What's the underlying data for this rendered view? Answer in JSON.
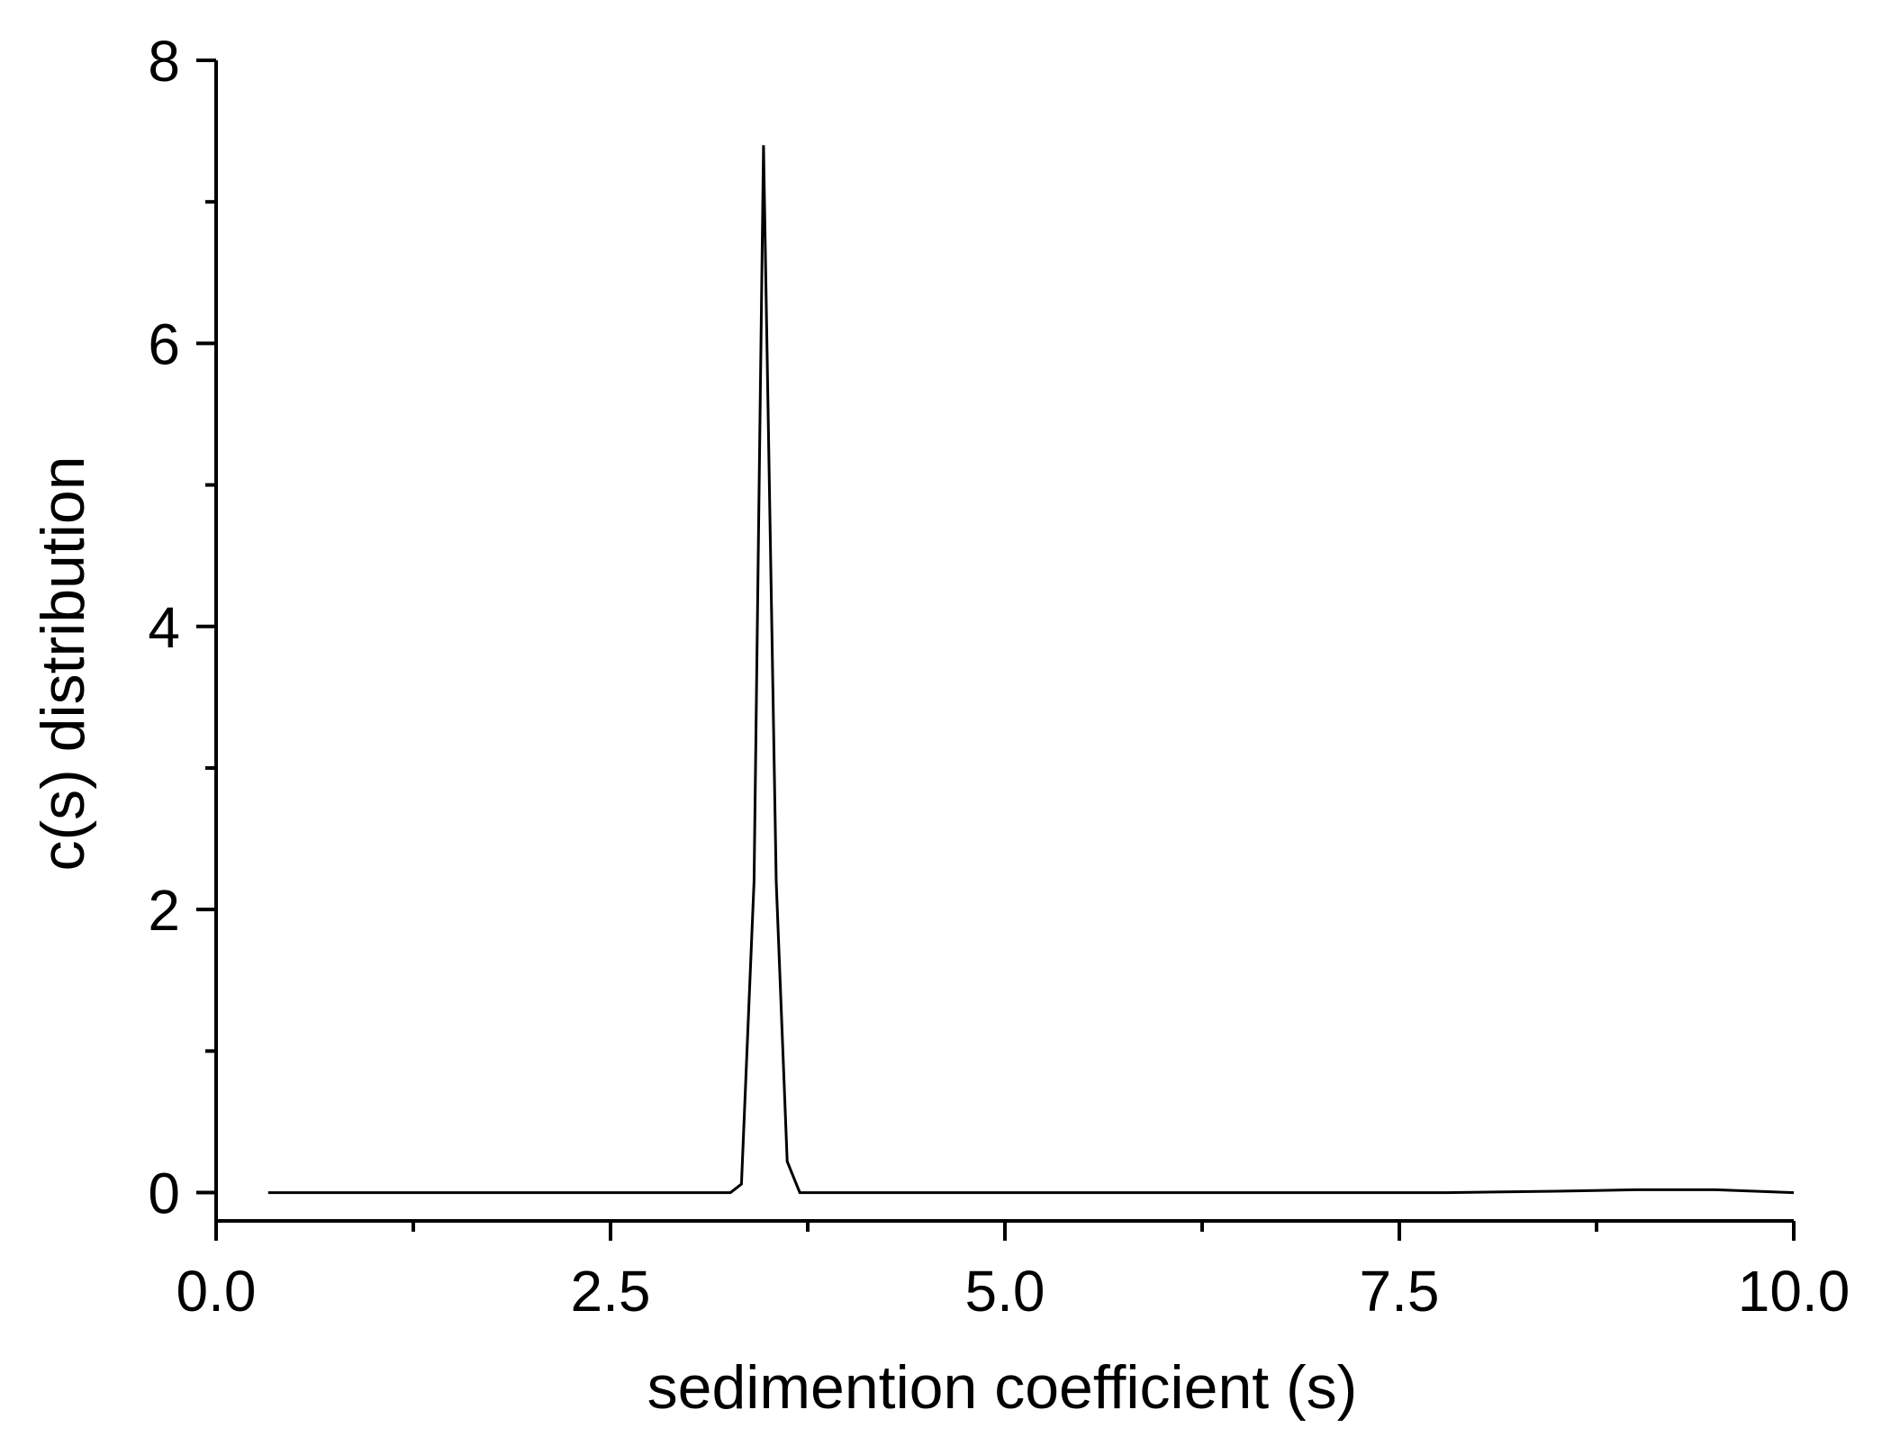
{
  "chart_data": {
    "type": "line",
    "title": "",
    "xlabel": "sedimention coefficient (s)",
    "ylabel": "c(s) distribution",
    "xlim": [
      0,
      10
    ],
    "ylim": [
      -0.2,
      8
    ],
    "x_ticks": [
      0.0,
      2.5,
      5.0,
      7.5,
      10.0
    ],
    "x_tick_labels": [
      "0.0",
      "2.5",
      "5.0",
      "7.5",
      "10.0"
    ],
    "x_minor_ticks": [
      1.25,
      3.75,
      6.25,
      8.75
    ],
    "y_ticks": [
      0,
      2,
      4,
      6,
      8
    ],
    "y_tick_labels": [
      "0",
      "2",
      "4",
      "6",
      "8"
    ],
    "y_minor_ticks": [
      1,
      3,
      5,
      7
    ],
    "grid": false,
    "legend": "none",
    "line_color": "#000000",
    "series": [
      {
        "x": [
          0.33,
          1.0,
          2.0,
          3.0,
          3.26,
          3.33,
          3.41,
          3.47,
          3.55,
          3.62,
          3.7,
          4.0,
          5.0,
          6.0,
          7.0,
          7.8,
          8.5,
          9.0,
          9.5,
          10.0
        ],
        "y": [
          0,
          0,
          0,
          0,
          0,
          0.06,
          2.2,
          7.4,
          2.2,
          0.22,
          0,
          0,
          0,
          0,
          0,
          0,
          0.01,
          0.02,
          0.02,
          0
        ]
      }
    ]
  }
}
